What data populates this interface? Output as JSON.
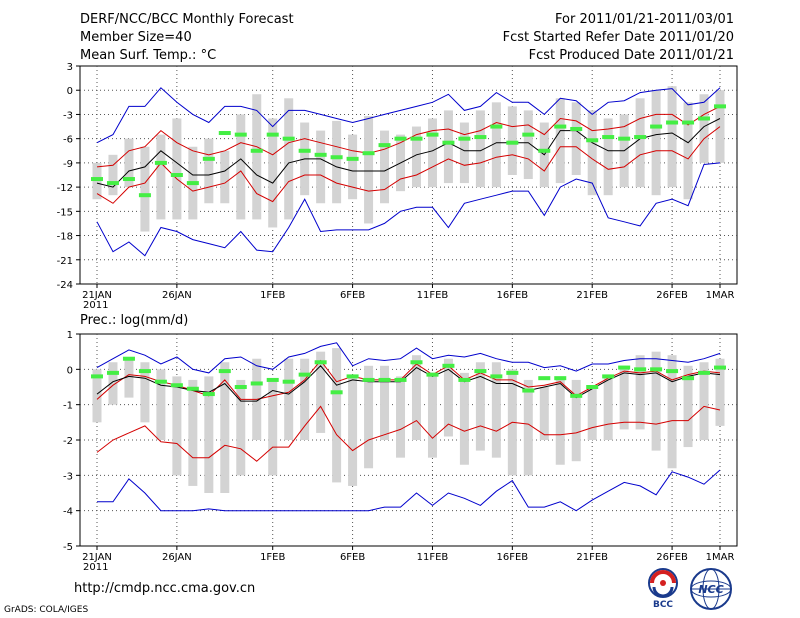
{
  "header": {
    "title": "DERF/NCC/BCC Monthly Forecast",
    "member_size": "Member Size=40",
    "variable": "Mean Surf. Temp.: °C",
    "period": "For 2011/01/21-2011/03/01",
    "started": "Fcst Started Refer Date 2011/01/20",
    "produced": "Fcst Produced Date 2011/01/21"
  },
  "footer": {
    "url": "http://cmdp.ncc.cma.gov.cn",
    "credit": "GrADS: COLA/IGES",
    "logo_bcc_text": "BCC",
    "logo_ncc_text": "NCC"
  },
  "colors": {
    "ensemble_bar": "#d3d3d3",
    "mean_line": "#000000",
    "std_band": "#d40000",
    "extreme_line": "#0000cc",
    "member_marker": "#44ee44",
    "grid": "#555555"
  },
  "chart_data": [
    {
      "type": "line",
      "subtitle": "",
      "ylabel": "Mean Surf. Temp.: °C",
      "ylim": [
        -24,
        3
      ],
      "yticks": [
        3,
        0,
        -3,
        -6,
        -9,
        -12,
        -15,
        -18,
        -21,
        -24
      ],
      "xlim": [
        0,
        39
      ],
      "xticks": [
        {
          "x": 0,
          "label": "21JAN",
          "sublabel": "2011"
        },
        {
          "x": 5,
          "label": "26JAN"
        },
        {
          "x": 11,
          "label": "1FEB"
        },
        {
          "x": 16,
          "label": "6FEB"
        },
        {
          "x": 21,
          "label": "11FEB"
        },
        {
          "x": 26,
          "label": "16FEB"
        },
        {
          "x": 31,
          "label": "21FEB"
        },
        {
          "x": 36,
          "label": "26FEB"
        },
        {
          "x": 39,
          "label": "1MAR"
        }
      ],
      "series": [
        {
          "name": "ensemble max",
          "values": [
            -6.5,
            -5.5,
            -2,
            -2,
            0.3,
            -1.5,
            -3,
            -4,
            -2,
            -2,
            -2.5,
            -4.5,
            -2.5,
            -2.5,
            -3,
            -3.5,
            -4,
            -3.5,
            -3,
            -2.5,
            -2,
            -1.5,
            -0.5,
            -2.5,
            -2,
            -0.3,
            -1.5,
            -1.5,
            -3,
            -1,
            -1.3,
            -3,
            -1.5,
            -1.3,
            -0.3,
            0,
            0.2,
            -1.8,
            -1.5,
            0.3
          ]
        },
        {
          "name": "mean + 1 std",
          "values": [
            -9.5,
            -9.3,
            -7.5,
            -7,
            -5,
            -6.5,
            -7.5,
            -8,
            -7.5,
            -6.5,
            -7,
            -8,
            -6.5,
            -6,
            -6.5,
            -7,
            -7.5,
            -7.8,
            -7.3,
            -6.5,
            -5.5,
            -5,
            -4.8,
            -5.5,
            -5,
            -4,
            -4.5,
            -4.3,
            -5.5,
            -3.5,
            -3.8,
            -5,
            -4.8,
            -4.5,
            -3.5,
            -3,
            -3,
            -4.3,
            -3,
            -2
          ]
        },
        {
          "name": "ensemble mean",
          "values": [
            -11.5,
            -12,
            -10,
            -9.5,
            -7.5,
            -9,
            -10.5,
            -10.5,
            -10,
            -8.5,
            -10.5,
            -11.5,
            -9,
            -8.5,
            -8.5,
            -9.5,
            -10,
            -10,
            -10,
            -9,
            -8,
            -7.5,
            -6.5,
            -7.5,
            -7.5,
            -6.5,
            -6.5,
            -6.5,
            -8,
            -5,
            -5,
            -6.5,
            -7.5,
            -7.5,
            -6,
            -5.5,
            -5.3,
            -6.5,
            -4.5,
            -3.5
          ]
        },
        {
          "name": "mean - 1 std",
          "values": [
            -12.8,
            -14,
            -12,
            -11.5,
            -9,
            -11,
            -12.5,
            -12,
            -11.5,
            -10,
            -12.8,
            -13.8,
            -11.3,
            -10.5,
            -10.5,
            -11.5,
            -12,
            -12.5,
            -12.3,
            -11,
            -10.5,
            -9.5,
            -8.5,
            -9.3,
            -9,
            -8.3,
            -8,
            -8.5,
            -10,
            -7,
            -7,
            -8.5,
            -9.8,
            -9.5,
            -8,
            -7.5,
            -7.5,
            -8.5,
            -6,
            -4.5
          ]
        },
        {
          "name": "ensemble min",
          "values": [
            -16.3,
            -20,
            -18.8,
            -20.5,
            -17,
            -17.5,
            -18.5,
            -19,
            -19.5,
            -17.5,
            -19.8,
            -20,
            -17,
            -13.5,
            -17.5,
            -17.3,
            -17.3,
            -17.3,
            -16.5,
            -15,
            -14.5,
            -14.5,
            -17,
            -14,
            -13.5,
            -13,
            -12.5,
            -12.5,
            -15.5,
            -12,
            -11,
            -11.5,
            -15.8,
            -16.3,
            -16.8,
            -14,
            -13.5,
            -14.3,
            -9.2,
            -9
          ]
        }
      ],
      "boxes": [
        {
          "low": -13.5,
          "high": -9
        },
        {
          "low": -13,
          "high": -8
        },
        {
          "low": -12,
          "high": -6
        },
        {
          "low": -17.5,
          "high": -7
        },
        {
          "low": -16,
          "high": -5.5
        },
        {
          "low": -16,
          "high": -3.5
        },
        {
          "low": -16,
          "high": -7
        },
        {
          "low": -14,
          "high": -6
        },
        {
          "low": -14,
          "high": -7.5
        },
        {
          "low": -16,
          "high": -3
        },
        {
          "low": -16,
          "high": -0.5
        },
        {
          "low": -17,
          "high": -3.5
        },
        {
          "low": -16,
          "high": -1
        },
        {
          "low": -13,
          "high": -4
        },
        {
          "low": -14,
          "high": -5
        },
        {
          "low": -14,
          "high": -3.8
        },
        {
          "low": -13.5,
          "high": -5.5
        },
        {
          "low": -16.5,
          "high": -3.2
        },
        {
          "low": -14,
          "high": -5
        },
        {
          "low": -12.5,
          "high": -5.5
        },
        {
          "low": -12,
          "high": -4.5
        },
        {
          "low": -12,
          "high": -3.5
        },
        {
          "low": -11.5,
          "high": -2.5
        },
        {
          "low": -11.5,
          "high": -4
        },
        {
          "low": -12,
          "high": -2.5
        },
        {
          "low": -12,
          "high": -1.5
        },
        {
          "low": -10.5,
          "high": -2
        },
        {
          "low": -11,
          "high": -2.5
        },
        {
          "low": -12,
          "high": -4
        },
        {
          "low": -11.5,
          "high": -1
        },
        {
          "low": -10.5,
          "high": -1.5
        },
        {
          "low": -13,
          "high": -2.5
        },
        {
          "low": -13,
          "high": -3.5
        },
        {
          "low": -12,
          "high": -3
        },
        {
          "low": -12,
          "high": -1
        },
        {
          "low": -13,
          "high": 0
        },
        {
          "low": -12,
          "high": 0.5
        },
        {
          "low": -13.5,
          "high": -1.5
        },
        {
          "low": -9,
          "high": -0.5
        },
        {
          "low": -9,
          "high": 0
        }
      ],
      "markers": [
        -11,
        -11.5,
        -11,
        -13,
        -9,
        -10.5,
        -11.5,
        -8.5,
        -5.3,
        -5.5,
        -7.5,
        -5.5,
        -6,
        -7.5,
        -8,
        -8.3,
        -8.5,
        -7.8,
        -6.8,
        -6,
        -6,
        -5.5,
        -6.5,
        -6,
        -5.8,
        -4.5,
        -6.5,
        -5.5,
        -7.5,
        -4.5,
        -4.8,
        -6.2,
        -5.8,
        -6,
        -5.8,
        -4.5,
        -4,
        -4,
        -3.5,
        -2
      ]
    },
    {
      "type": "line",
      "subtitle": "Prec.: log(mm/d)",
      "ylabel": "Prec.: log(mm/d)",
      "ylim": [
        -5,
        1
      ],
      "yticks": [
        1,
        0,
        -1,
        -2,
        -3,
        -4,
        -5
      ],
      "xlim": [
        0,
        39
      ],
      "xticks": [
        {
          "x": 0,
          "label": "21JAN",
          "sublabel": "2011"
        },
        {
          "x": 5,
          "label": "26JAN"
        },
        {
          "x": 11,
          "label": "1FEB"
        },
        {
          "x": 16,
          "label": "6FEB"
        },
        {
          "x": 21,
          "label": "11FEB"
        },
        {
          "x": 26,
          "label": "16FEB"
        },
        {
          "x": 31,
          "label": "21FEB"
        },
        {
          "x": 36,
          "label": "26FEB"
        },
        {
          "x": 39,
          "label": "1MAR"
        }
      ],
      "series": [
        {
          "name": "ensemble max",
          "values": [
            0.05,
            0.3,
            0.55,
            0.4,
            0.15,
            0.35,
            0,
            -0.1,
            0.3,
            0.35,
            0.1,
            0,
            0.35,
            0.45,
            0.65,
            0.75,
            0.1,
            0.3,
            0.25,
            0.3,
            0.6,
            0.3,
            0.4,
            0.35,
            0.45,
            0.3,
            0.2,
            0.2,
            0.05,
            0.1,
            -0.05,
            0.15,
            0.15,
            0.25,
            0.3,
            0.3,
            0.25,
            0.2,
            0.3,
            0.45
          ]
        },
        {
          "name": "mean + 1 std",
          "values": [
            -0.85,
            -0.45,
            -0.15,
            -0.2,
            -0.35,
            -0.45,
            -0.6,
            -0.75,
            -0.3,
            -0.85,
            -0.85,
            -0.75,
            -0.65,
            -0.3,
            0.25,
            -0.35,
            -0.2,
            -0.3,
            -0.3,
            -0.3,
            0.15,
            -0.15,
            0.1,
            -0.3,
            -0.1,
            -0.3,
            -0.3,
            -0.5,
            -0.45,
            -0.35,
            -0.75,
            -0.5,
            -0.25,
            -0.05,
            -0.1,
            -0.05,
            -0.3,
            -0.15,
            -0.05,
            -0.1
          ]
        },
        {
          "name": "ensemble mean",
          "values": [
            -0.7,
            -0.35,
            -0.2,
            -0.25,
            -0.45,
            -0.5,
            -0.6,
            -0.65,
            -0.4,
            -0.9,
            -0.9,
            -0.6,
            -0.7,
            -0.35,
            0.1,
            -0.45,
            -0.3,
            -0.35,
            -0.35,
            -0.35,
            0.05,
            -0.2,
            0,
            -0.35,
            -0.2,
            -0.4,
            -0.4,
            -0.6,
            -0.5,
            -0.4,
            -0.8,
            -0.55,
            -0.3,
            -0.1,
            -0.15,
            -0.1,
            -0.35,
            -0.2,
            -0.1,
            -0.15
          ]
        },
        {
          "name": "mean - 1 std",
          "values": [
            -2.35,
            -2,
            -1.8,
            -1.6,
            -2.05,
            -2.1,
            -2.5,
            -2.5,
            -2.15,
            -2.25,
            -2.6,
            -2.2,
            -2.2,
            -1.6,
            -1.05,
            -1.85,
            -2.3,
            -2,
            -1.85,
            -1.7,
            -1.45,
            -1.95,
            -1.55,
            -1.75,
            -1.6,
            -1.75,
            -1.5,
            -1.55,
            -1.85,
            -1.85,
            -1.8,
            -1.65,
            -1.55,
            -1.5,
            -1.5,
            -1.55,
            -1.45,
            -1.45,
            -1.05,
            -1.15
          ]
        },
        {
          "name": "ensemble min",
          "values": [
            -3.75,
            -3.75,
            -3.1,
            -3.5,
            -4,
            -4,
            -4,
            -3.95,
            -4,
            -4,
            -4,
            -4,
            -4,
            -4,
            -4,
            -4,
            -4,
            -4,
            -3.9,
            -3.9,
            -3.5,
            -3.85,
            -3.5,
            -3.65,
            -3.85,
            -3.45,
            -3.15,
            -3.9,
            -3.9,
            -3.75,
            -4,
            -3.7,
            -3.45,
            -3.2,
            -3.3,
            -3.55,
            -2.9,
            -3.05,
            -3.25,
            -2.85
          ]
        }
      ],
      "boxes": [
        {
          "low": -1.5,
          "high": 0
        },
        {
          "low": -1,
          "high": 0.2
        },
        {
          "low": -0.8,
          "high": 0.3
        },
        {
          "low": -1.5,
          "high": 0.2
        },
        {
          "low": -2,
          "high": 0
        },
        {
          "low": -3,
          "high": -0.2
        },
        {
          "low": -3.3,
          "high": -0.3
        },
        {
          "low": -3.5,
          "high": -0.2
        },
        {
          "low": -3.5,
          "high": 0.2
        },
        {
          "low": -3,
          "high": -0.3
        },
        {
          "low": -2,
          "high": 0.3
        },
        {
          "low": -3,
          "high": -0.3
        },
        {
          "low": -2,
          "high": 0.3
        },
        {
          "low": -2,
          "high": 0.3
        },
        {
          "low": -1.8,
          "high": 0.5
        },
        {
          "low": -3.2,
          "high": 0.6
        },
        {
          "low": -3.3,
          "high": -0.2
        },
        {
          "low": -2.8,
          "high": 0.1
        },
        {
          "low": -2,
          "high": 0.1
        },
        {
          "low": -2.5,
          "high": -0.2
        },
        {
          "low": -2,
          "high": 0.4
        },
        {
          "low": -2.5,
          "high": -0.1
        },
        {
          "low": -1.9,
          "high": 0.3
        },
        {
          "low": -2.7,
          "high": -0.1
        },
        {
          "low": -2.3,
          "high": 0.2
        },
        {
          "low": -2.5,
          "high": 0.2
        },
        {
          "low": -3,
          "high": 0
        },
        {
          "low": -3,
          "high": -0.3
        },
        {
          "low": -2,
          "high": -0.5
        },
        {
          "low": -2.7,
          "high": -0.2
        },
        {
          "low": -2.6,
          "high": -0.3
        },
        {
          "low": -2,
          "high": -0.5
        },
        {
          "low": -2,
          "high": -0.2
        },
        {
          "low": -1.7,
          "high": 0.1
        },
        {
          "low": -1.7,
          "high": 0.4
        },
        {
          "low": -2.3,
          "high": 0.5
        },
        {
          "low": -2.8,
          "high": 0.4
        },
        {
          "low": -2.2,
          "high": 0.1
        },
        {
          "low": -2,
          "high": 0.2
        },
        {
          "low": -1.6,
          "high": 0.3
        }
      ],
      "markers": [
        -0.2,
        -0.1,
        0.3,
        -0.05,
        -0.35,
        -0.45,
        -0.55,
        -0.7,
        -0.05,
        -0.5,
        -0.4,
        -0.3,
        -0.35,
        -0.15,
        0.2,
        -0.65,
        -0.2,
        -0.3,
        -0.3,
        -0.3,
        0.2,
        -0.15,
        0.1,
        -0.3,
        -0.05,
        -0.2,
        -0.1,
        -0.6,
        -0.25,
        -0.25,
        -0.75,
        -0.5,
        -0.2,
        0.05,
        0,
        0,
        -0.05,
        -0.25,
        -0.1,
        0.05
      ]
    }
  ]
}
